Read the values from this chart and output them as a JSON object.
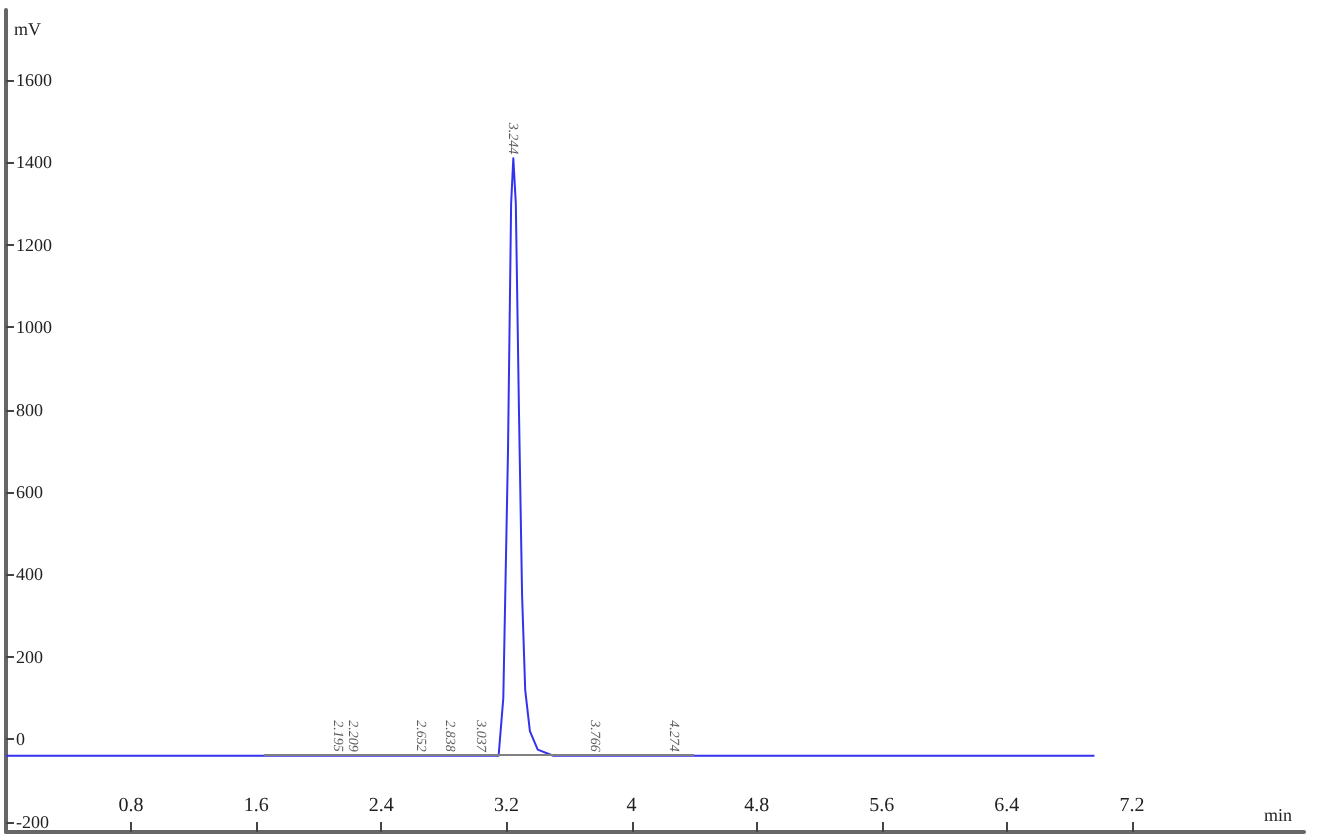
{
  "chart_data": {
    "type": "line",
    "xlabel": "min",
    "ylabel": "mV",
    "xlim": [
      0,
      8.3
    ],
    "xticks": [
      0.8,
      1.6,
      2.4,
      3.2,
      4,
      4.8,
      5.6,
      6.4,
      7.2
    ],
    "ylim": [
      -225,
      1770
    ],
    "yticks": [
      -200,
      0,
      200,
      400,
      600,
      800,
      1000,
      1200,
      1400,
      1600
    ],
    "grid": false,
    "marker": "none",
    "line_style": "solid",
    "series": [
      {
        "color": "#3333ee",
        "x": [
          0,
          1.6,
          3.0,
          3.15,
          3.18,
          3.21,
          3.23,
          3.244,
          3.26,
          3.28,
          3.3,
          3.32,
          3.35,
          3.4,
          3.5,
          3.6,
          4.0,
          5.0,
          6.0,
          6.96
        ],
        "values": [
          -40,
          -40,
          -40,
          -40,
          100,
          700,
          1300,
          1410,
          1300,
          800,
          350,
          120,
          20,
          -25,
          -40,
          -40,
          -40,
          -40,
          -40,
          -40
        ]
      },
      {
        "color": "#808080",
        "x": [
          1.65,
          4.4
        ],
        "values": [
          -38,
          -38
        ]
      }
    ],
    "annotations": [
      {
        "text": "3.244",
        "x": 3.244,
        "y": 1410
      },
      {
        "text": "2.195",
        "x": 2.12,
        "y": -40
      },
      {
        "text": "2.209",
        "x": 2.22,
        "y": -40
      },
      {
        "text": "2.652",
        "x": 2.652,
        "y": -40
      },
      {
        "text": "2.838",
        "x": 2.838,
        "y": -40
      },
      {
        "text": "3.037",
        "x": 3.037,
        "y": -40
      },
      {
        "text": "3.766",
        "x": 3.766,
        "y": -40
      },
      {
        "text": "4.274",
        "x": 4.274,
        "y": -40
      }
    ]
  }
}
